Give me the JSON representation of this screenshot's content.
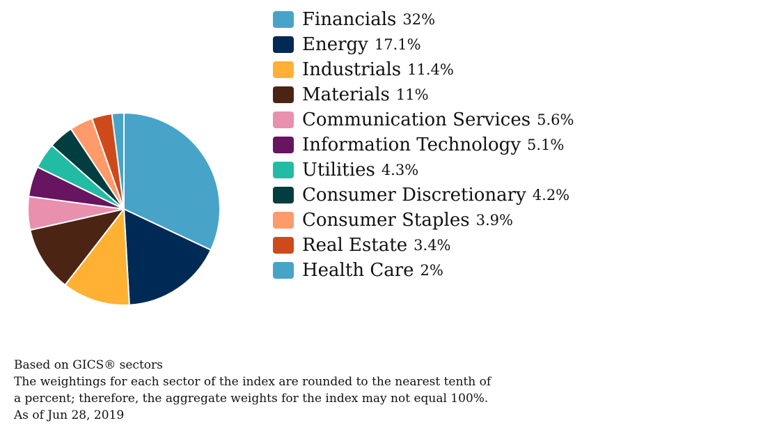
{
  "chart_data": {
    "type": "pie",
    "slices": [
      {
        "label": "Financials",
        "value": 32,
        "display": "32%",
        "color": "#48a3c9"
      },
      {
        "label": "Energy",
        "value": 17.1,
        "display": "17.1%",
        "color": "#002a56"
      },
      {
        "label": "Industrials",
        "value": 11.4,
        "display": "11.4%",
        "color": "#ffb133"
      },
      {
        "label": "Materials",
        "value": 11,
        "display": "11%",
        "color": "#4b2414"
      },
      {
        "label": "Communication Services",
        "value": 5.6,
        "display": "5.6%",
        "color": "#e890ae"
      },
      {
        "label": "Information Technology",
        "value": 5.1,
        "display": "5.1%",
        "color": "#671461"
      },
      {
        "label": "Utilities",
        "value": 4.3,
        "display": "4.3%",
        "color": "#21bca3"
      },
      {
        "label": "Consumer Discretionary",
        "value": 4.2,
        "display": "4.2%",
        "color": "#023d3f"
      },
      {
        "label": "Consumer Staples",
        "value": 3.9,
        "display": "3.9%",
        "color": "#ff9a6a"
      },
      {
        "label": "Real Estate",
        "value": 3.4,
        "display": "3.4%",
        "color": "#ce4a1a"
      },
      {
        "label": "Health Care",
        "value": 2,
        "display": "2%",
        "color": "#48a3c9"
      }
    ],
    "legend": "right",
    "start_angle": "top",
    "direction": "clockwise"
  },
  "footnotes": {
    "line1": "Based on GICS® sectors",
    "line2": "The weightings for each sector of the index are rounded to the nearest tenth of",
    "line3": "a percent; therefore, the aggregate weights for the index may not equal 100%.",
    "line4": "As of Jun 28, 2019"
  }
}
